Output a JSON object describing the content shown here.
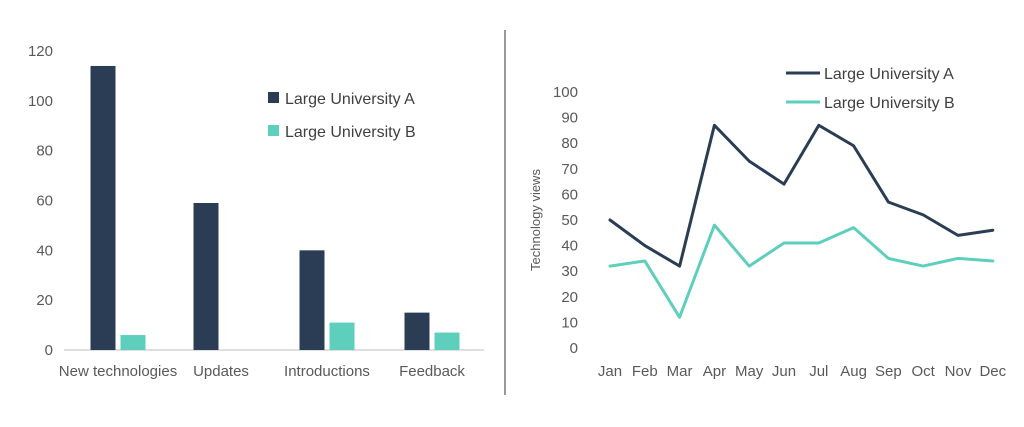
{
  "colors": {
    "series_a": "#2b3d55",
    "series_b": "#5ecfbc",
    "axis": "#bfbfbf",
    "text": "#595959",
    "divider": "#333333"
  },
  "chart_data": [
    {
      "type": "bar",
      "categories": [
        "New technologies",
        "Updates",
        "Introductions",
        "Feedback"
      ],
      "series": [
        {
          "name": "Large University A",
          "values": [
            114,
            59,
            40,
            15
          ]
        },
        {
          "name": "Large University B",
          "values": [
            6,
            0,
            11,
            7
          ]
        }
      ],
      "ylim": [
        0,
        120
      ],
      "yticks": [
        0,
        20,
        40,
        60,
        80,
        100,
        120
      ],
      "xlabel": "",
      "ylabel": "",
      "grid": false,
      "legend": "right"
    },
    {
      "type": "line",
      "categories": [
        "Jan",
        "Feb",
        "Mar",
        "Apr",
        "May",
        "Jun",
        "Jul",
        "Aug",
        "Sep",
        "Oct",
        "Nov",
        "Dec"
      ],
      "series": [
        {
          "name": "Large University A",
          "values": [
            50,
            40,
            32,
            87,
            73,
            64,
            87,
            79,
            57,
            52,
            44,
            46
          ]
        },
        {
          "name": "Large University B",
          "values": [
            32,
            34,
            12,
            48,
            32,
            41,
            41,
            47,
            35,
            32,
            35,
            34
          ]
        }
      ],
      "ylim": [
        0,
        100
      ],
      "yticks": [
        0,
        10,
        20,
        30,
        40,
        50,
        60,
        70,
        80,
        90,
        100
      ],
      "xlabel": "",
      "ylabel": "Technology views",
      "grid": false,
      "legend": "top-right"
    }
  ]
}
